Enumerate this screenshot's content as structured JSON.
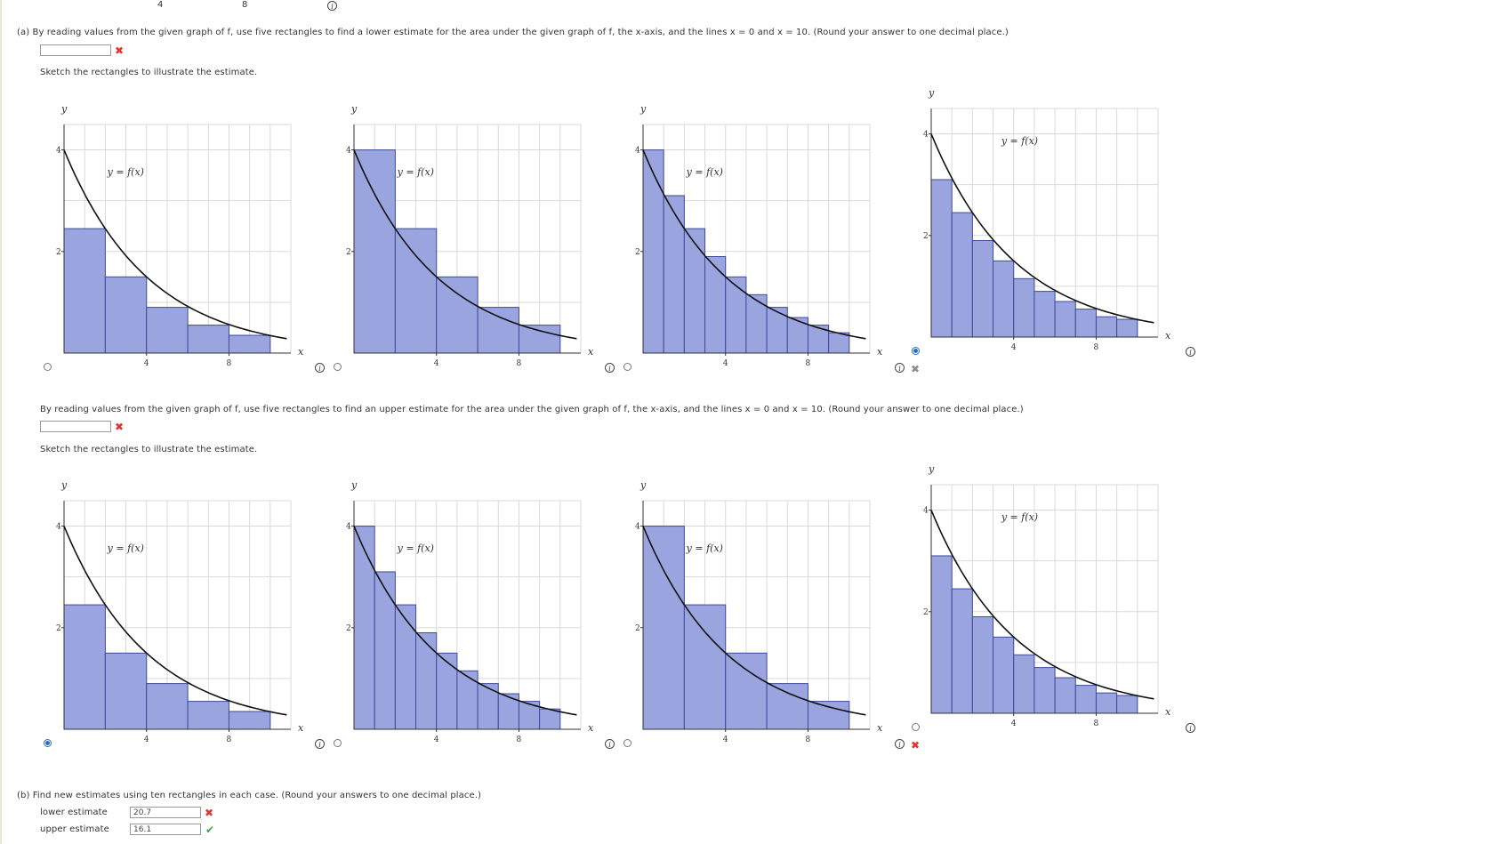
{
  "top_ticks": [
    "4",
    "8"
  ],
  "part_a": {
    "question_lower": "(a)  By reading values from the given graph of f, use five rectangles to find a lower estimate for the area under the given graph of f, the x-axis, and the lines x = 0 and x = 10. (Round your answer to one decimal place.)",
    "lower_answer": "",
    "sketch_label": "Sketch the rectangles to illustrate the estimate.",
    "question_upper": "By reading values from the given graph of f, use five rectangles to find an upper estimate for the area under the given graph of f, the x-axis, and the lines x = 0 and x = 10. (Round your answer to one decimal place.)",
    "upper_answer": "",
    "sketch_label_2": "Sketch the rectangles to illustrate the estimate."
  },
  "graph_labels": {
    "y_axis": "y",
    "x_axis": "x",
    "curve": "y = f(x)",
    "ytick_2": "2",
    "ytick_4": "4",
    "xtick_4": "4",
    "xtick_8": "8"
  },
  "lower_graph_options": [
    {
      "rect_heights": [
        2.45,
        1.5,
        0.9,
        0.55,
        0.35
      ],
      "selected": false
    },
    {
      "rect_heights": [
        4.0,
        2.45,
        1.5,
        0.9,
        0.55
      ],
      "selected": false
    },
    {
      "rect_heights": [
        4.0,
        3.1,
        2.45,
        1.9,
        1.5,
        1.15,
        0.9,
        0.7,
        0.55,
        0.4
      ],
      "selected": false
    },
    {
      "rect_heights": [
        3.1,
        2.45,
        1.9,
        1.5,
        1.15,
        0.9,
        0.7,
        0.55,
        0.4,
        0.35
      ],
      "selected": true
    }
  ],
  "upper_graph_options": [
    {
      "rect_heights": [
        2.45,
        1.5,
        0.9,
        0.55,
        0.35
      ],
      "selected": true
    },
    {
      "rect_heights": [
        4.0,
        3.1,
        2.45,
        1.9,
        1.5,
        1.15,
        0.9,
        0.7,
        0.55,
        0.4
      ],
      "selected": false
    },
    {
      "rect_heights": [
        4.0,
        2.45,
        1.5,
        0.9,
        0.55
      ],
      "selected": false
    },
    {
      "rect_heights": [
        3.1,
        2.45,
        1.9,
        1.5,
        1.15,
        0.9,
        0.7,
        0.55,
        0.4,
        0.35
      ],
      "selected": false
    }
  ],
  "part_b": {
    "question": "(b)  Find new estimates using ten rectangles in each case. (Round your answers to one decimal place.)",
    "lower_label": "lower estimate",
    "lower_value": "20.7",
    "upper_label": "upper estimate",
    "upper_value": "16.1"
  },
  "colors": {
    "rect_fill": "#9aa4de",
    "rect_stroke": "#3d4b9a",
    "grid": "#d9d9d9",
    "error": "#e0342f",
    "correct": "#3fa34d",
    "radio_selected": "#2a6fbf"
  }
}
